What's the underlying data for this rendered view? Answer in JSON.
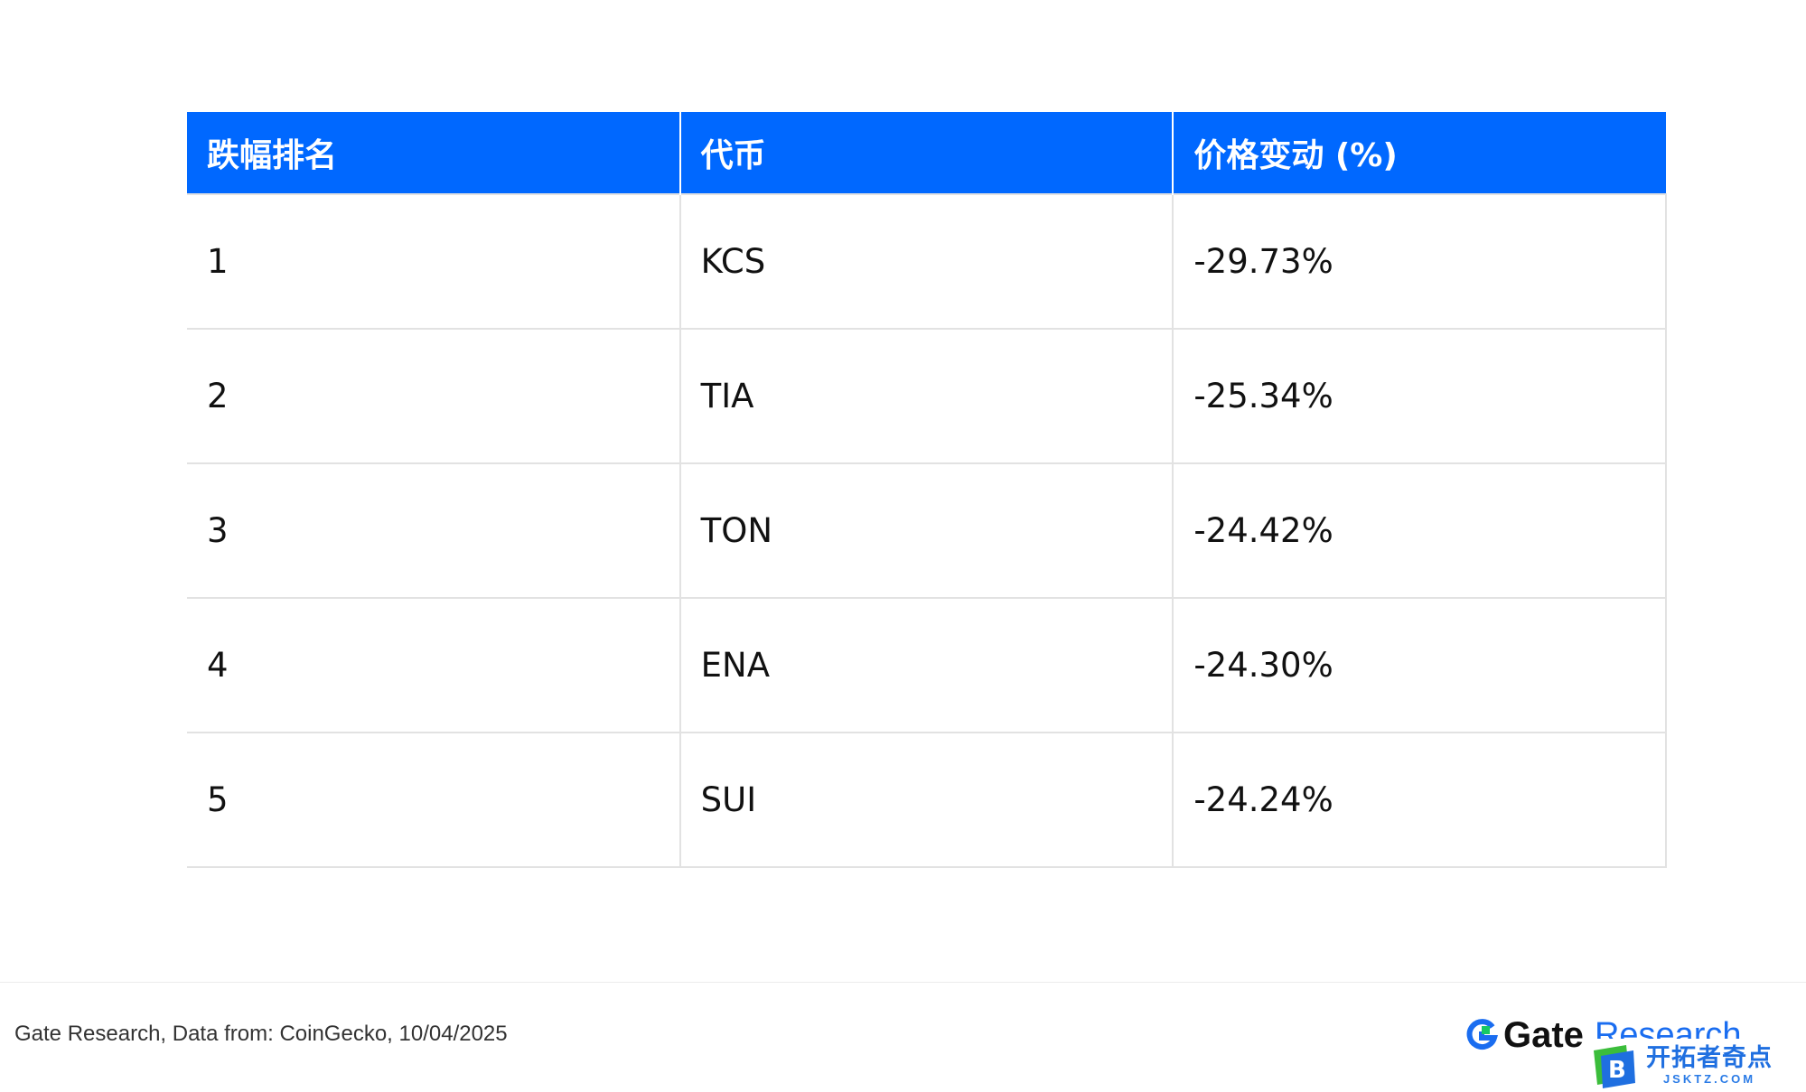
{
  "chart_data": {
    "type": "table",
    "columns": [
      "跌幅排名",
      "代币",
      "价格变动 (%)"
    ],
    "rows": [
      [
        "1",
        "KCS",
        "-29.73%"
      ],
      [
        "2",
        "TIA",
        "-25.34%"
      ],
      [
        "3",
        "TON",
        "-24.42%"
      ],
      [
        "4",
        "ENA",
        "-24.30%"
      ],
      [
        "5",
        "SUI",
        "-24.24%"
      ]
    ]
  },
  "footer": {
    "source": "Gate Research, Data from: CoinGecko, 10/04/2025"
  },
  "brand": {
    "gate": "Gate",
    "research": "Research"
  },
  "watermark": {
    "title": "开拓者奇点",
    "sub": "JSKTZ.COM",
    "logo_letter": "B"
  },
  "colors": {
    "header_bg": "#0068ff",
    "brand_blue": "#1a6df0",
    "brand_green": "#17c964",
    "watermark_green": "#3bbd3b"
  }
}
